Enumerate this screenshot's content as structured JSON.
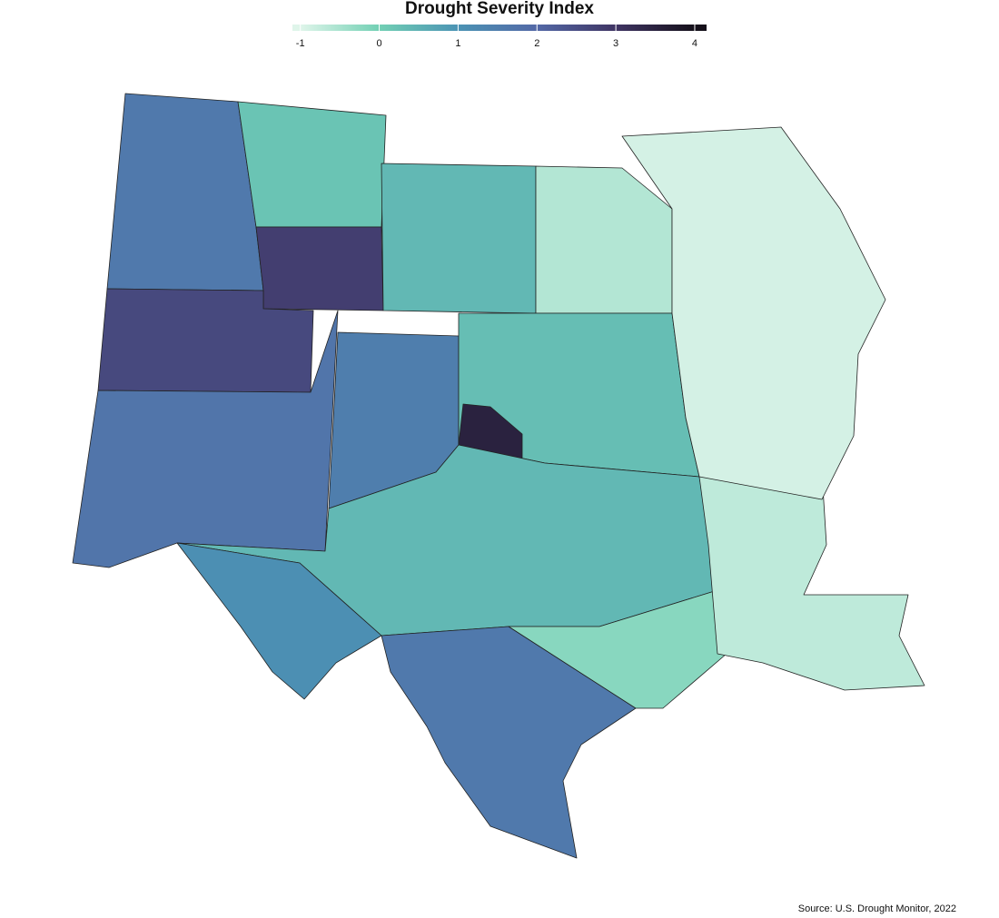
{
  "title": "Drought Severity Index",
  "colorbar": {
    "lim": [
      -1.1,
      4.15
    ],
    "ticks": [
      -1,
      0,
      1,
      2,
      3,
      4
    ],
    "stops": [
      {
        "value": -1,
        "color": "#dff5ea"
      },
      {
        "value": 0,
        "color": "#72d0b4"
      },
      {
        "value": 1,
        "color": "#4b93b4"
      },
      {
        "value": 2,
        "color": "#5368a6"
      },
      {
        "value": 3,
        "color": "#3f3463"
      },
      {
        "value": 4,
        "color": "#15101a"
      }
    ]
  },
  "map": {
    "region_values": [
      1.6,
      0.2,
      2.8,
      2.6,
      1.7,
      0.4,
      -0.6,
      1.5,
      0.3,
      3.5,
      0.4,
      1.1,
      1.6,
      -0.2,
      -0.7,
      -0.9
    ]
  },
  "source": "Source: U.S. Drought Monitor, 2022"
}
